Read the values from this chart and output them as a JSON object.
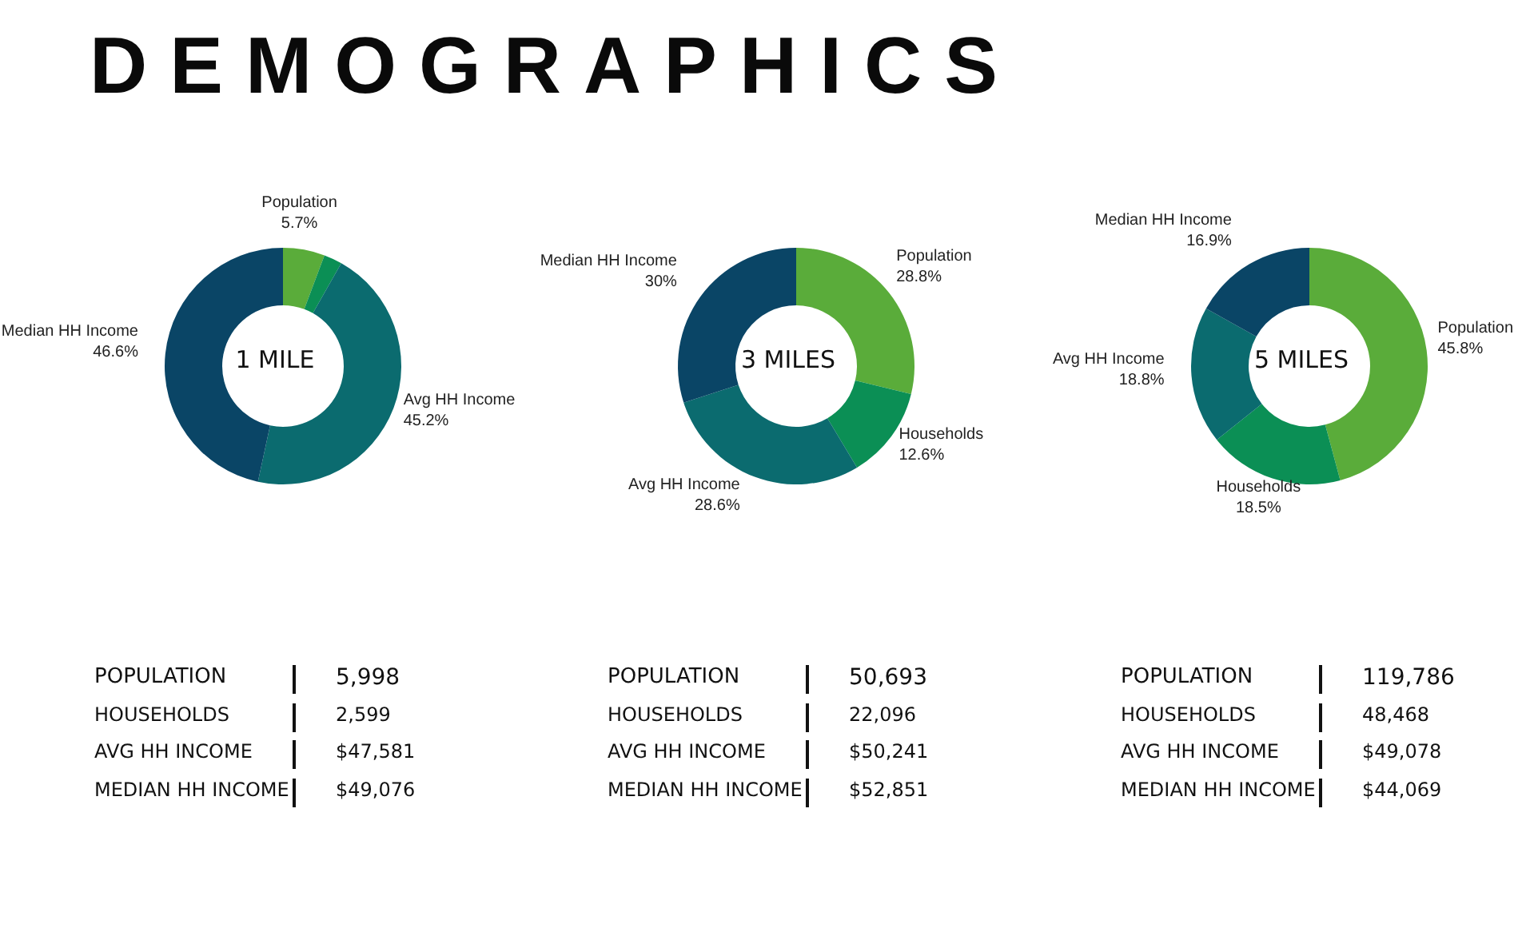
{
  "chart_data": [
    {
      "type": "other",
      "title": "DEMOGRAPHICS"
    },
    {
      "type": "donut",
      "title": "1 MILE",
      "categories": [
        "Population",
        null,
        "Avg HH Income",
        "Median HH Income"
      ],
      "values": [
        5.7,
        2.5,
        45.2,
        46.6
      ],
      "value_labels": [
        "5.7%",
        null,
        "45.2%",
        "46.6%"
      ],
      "colors": [
        "#5aac3a",
        "#0b8f55",
        "#0b6b6f",
        "#0a4566"
      ],
      "annotations": [
        "POPULATION",
        "5,998",
        "HOUSEHOLDS",
        "2,599",
        "AVG HH INCOME",
        "$47,581",
        "MEDIAN HH INCOME",
        "$49,076"
      ]
    },
    {
      "type": "donut",
      "title": "3 MILES",
      "categories": [
        "Population",
        "Households",
        "Avg HH Income",
        "Median HH Income"
      ],
      "values": [
        28.8,
        12.6,
        28.6,
        30
      ],
      "value_labels": [
        "28.8%",
        "12.6%",
        "28.6%",
        "30%"
      ],
      "colors": [
        "#5aac3a",
        "#0b8f55",
        "#0b6b6f",
        "#0a4566"
      ],
      "annotations": [
        "POPULATION",
        "50,693",
        "HOUSEHOLDS",
        "22,096",
        "AVG HH INCOME",
        "$50,241",
        "MEDIAN HH INCOME",
        "$52,851"
      ]
    },
    {
      "type": "donut",
      "title": "5 MILES",
      "categories": [
        "Population",
        "Households",
        "Avg HH Income",
        "Median HH Income"
      ],
      "values": [
        45.8,
        18.5,
        18.8,
        16.9
      ],
      "value_labels": [
        "45.8%",
        "18.5%",
        "18.8%",
        "16.9%"
      ],
      "colors": [
        "#5aac3a",
        "#0b8f55",
        "#0b6b6f",
        "#0a4566"
      ],
      "annotations": [
        "POPULATION",
        "119,786",
        "HOUSEHOLDS",
        "48,468",
        "AVG HH INCOME",
        "$49,078",
        "MEDIAN HH INCOME",
        "$44,069"
      ]
    }
  ]
}
